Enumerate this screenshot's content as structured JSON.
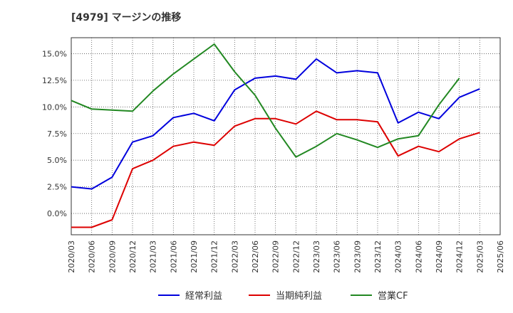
{
  "chart_data": {
    "type": "line",
    "title": "[4979]  マージンの推移",
    "ylim": [
      -2.0,
      16.5
    ],
    "yticks": [
      0.0,
      2.5,
      5.0,
      7.5,
      10.0,
      12.5,
      15.0
    ],
    "ytick_labels": [
      "0.0%",
      "2.5%",
      "5.0%",
      "7.5%",
      "10.0%",
      "12.5%",
      "15.0%"
    ],
    "x": [
      "2020/03",
      "2020/06",
      "2020/09",
      "2020/12",
      "2021/03",
      "2021/06",
      "2021/09",
      "2021/12",
      "2022/03",
      "2022/06",
      "2022/09",
      "2022/12",
      "2023/03",
      "2023/06",
      "2023/09",
      "2023/12",
      "2024/03",
      "2024/06",
      "2024/09",
      "2024/12",
      "2025/03",
      "2025/06"
    ],
    "grid": true,
    "legend_position": "bottom",
    "series": [
      {
        "name": "経常利益",
        "color": "#0000dd",
        "values": [
          2.5,
          2.3,
          3.4,
          6.7,
          7.3,
          9.0,
          9.4,
          8.7,
          11.6,
          12.7,
          12.9,
          12.6,
          14.5,
          13.2,
          13.4,
          13.2,
          8.5,
          9.5,
          8.9,
          10.9,
          11.7,
          null
        ]
      },
      {
        "name": "当期純利益",
        "color": "#dd0000",
        "values": [
          -1.3,
          -1.3,
          -0.6,
          4.2,
          5.0,
          6.3,
          6.7,
          6.4,
          8.2,
          8.9,
          8.9,
          8.4,
          9.6,
          8.8,
          8.8,
          8.6,
          5.4,
          6.3,
          5.8,
          7.0,
          7.6,
          null
        ]
      },
      {
        "name": "営業CF",
        "color": "#228822",
        "values": [
          10.6,
          9.8,
          9.7,
          9.6,
          11.5,
          13.1,
          14.5,
          15.9,
          13.3,
          11.1,
          8.0,
          5.3,
          6.3,
          7.5,
          6.9,
          6.2,
          7.0,
          7.3,
          10.2,
          12.7,
          null,
          null
        ]
      }
    ]
  },
  "colors": {
    "axis": "#333333",
    "grid": "#555555",
    "background": "#ffffff"
  }
}
